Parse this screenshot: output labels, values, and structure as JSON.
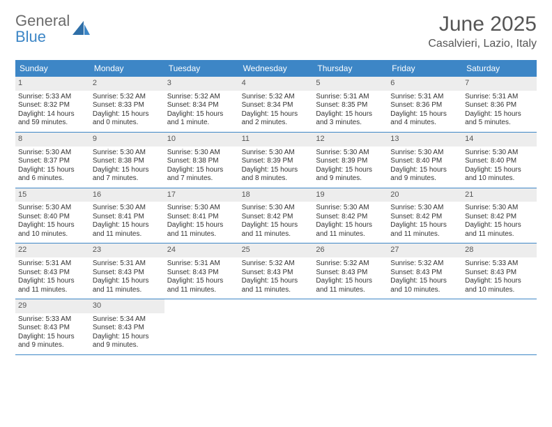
{
  "brand": {
    "first": "General",
    "second": "Blue"
  },
  "title": {
    "month": "June 2025",
    "location": "Casalvieri, Lazio, Italy"
  },
  "day_names": [
    "Sunday",
    "Monday",
    "Tuesday",
    "Wednesday",
    "Thursday",
    "Friday",
    "Saturday"
  ],
  "colors": {
    "header_bg": "#3d86c6",
    "header_text": "#ffffff",
    "num_bg": "#ededed",
    "row_border": "#3d86c6",
    "text": "#333333",
    "brand_gray": "#6b6b6b",
    "brand_blue": "#3d86c6"
  },
  "weeks": [
    [
      {
        "num": "1",
        "sunrise": "Sunrise: 5:33 AM",
        "sunset": "Sunset: 8:32 PM",
        "daylight1": "Daylight: 14 hours",
        "daylight2": "and 59 minutes."
      },
      {
        "num": "2",
        "sunrise": "Sunrise: 5:32 AM",
        "sunset": "Sunset: 8:33 PM",
        "daylight1": "Daylight: 15 hours",
        "daylight2": "and 0 minutes."
      },
      {
        "num": "3",
        "sunrise": "Sunrise: 5:32 AM",
        "sunset": "Sunset: 8:34 PM",
        "daylight1": "Daylight: 15 hours",
        "daylight2": "and 1 minute."
      },
      {
        "num": "4",
        "sunrise": "Sunrise: 5:32 AM",
        "sunset": "Sunset: 8:34 PM",
        "daylight1": "Daylight: 15 hours",
        "daylight2": "and 2 minutes."
      },
      {
        "num": "5",
        "sunrise": "Sunrise: 5:31 AM",
        "sunset": "Sunset: 8:35 PM",
        "daylight1": "Daylight: 15 hours",
        "daylight2": "and 3 minutes."
      },
      {
        "num": "6",
        "sunrise": "Sunrise: 5:31 AM",
        "sunset": "Sunset: 8:36 PM",
        "daylight1": "Daylight: 15 hours",
        "daylight2": "and 4 minutes."
      },
      {
        "num": "7",
        "sunrise": "Sunrise: 5:31 AM",
        "sunset": "Sunset: 8:36 PM",
        "daylight1": "Daylight: 15 hours",
        "daylight2": "and 5 minutes."
      }
    ],
    [
      {
        "num": "8",
        "sunrise": "Sunrise: 5:30 AM",
        "sunset": "Sunset: 8:37 PM",
        "daylight1": "Daylight: 15 hours",
        "daylight2": "and 6 minutes."
      },
      {
        "num": "9",
        "sunrise": "Sunrise: 5:30 AM",
        "sunset": "Sunset: 8:38 PM",
        "daylight1": "Daylight: 15 hours",
        "daylight2": "and 7 minutes."
      },
      {
        "num": "10",
        "sunrise": "Sunrise: 5:30 AM",
        "sunset": "Sunset: 8:38 PM",
        "daylight1": "Daylight: 15 hours",
        "daylight2": "and 7 minutes."
      },
      {
        "num": "11",
        "sunrise": "Sunrise: 5:30 AM",
        "sunset": "Sunset: 8:39 PM",
        "daylight1": "Daylight: 15 hours",
        "daylight2": "and 8 minutes."
      },
      {
        "num": "12",
        "sunrise": "Sunrise: 5:30 AM",
        "sunset": "Sunset: 8:39 PM",
        "daylight1": "Daylight: 15 hours",
        "daylight2": "and 9 minutes."
      },
      {
        "num": "13",
        "sunrise": "Sunrise: 5:30 AM",
        "sunset": "Sunset: 8:40 PM",
        "daylight1": "Daylight: 15 hours",
        "daylight2": "and 9 minutes."
      },
      {
        "num": "14",
        "sunrise": "Sunrise: 5:30 AM",
        "sunset": "Sunset: 8:40 PM",
        "daylight1": "Daylight: 15 hours",
        "daylight2": "and 10 minutes."
      }
    ],
    [
      {
        "num": "15",
        "sunrise": "Sunrise: 5:30 AM",
        "sunset": "Sunset: 8:40 PM",
        "daylight1": "Daylight: 15 hours",
        "daylight2": "and 10 minutes."
      },
      {
        "num": "16",
        "sunrise": "Sunrise: 5:30 AM",
        "sunset": "Sunset: 8:41 PM",
        "daylight1": "Daylight: 15 hours",
        "daylight2": "and 11 minutes."
      },
      {
        "num": "17",
        "sunrise": "Sunrise: 5:30 AM",
        "sunset": "Sunset: 8:41 PM",
        "daylight1": "Daylight: 15 hours",
        "daylight2": "and 11 minutes."
      },
      {
        "num": "18",
        "sunrise": "Sunrise: 5:30 AM",
        "sunset": "Sunset: 8:42 PM",
        "daylight1": "Daylight: 15 hours",
        "daylight2": "and 11 minutes."
      },
      {
        "num": "19",
        "sunrise": "Sunrise: 5:30 AM",
        "sunset": "Sunset: 8:42 PM",
        "daylight1": "Daylight: 15 hours",
        "daylight2": "and 11 minutes."
      },
      {
        "num": "20",
        "sunrise": "Sunrise: 5:30 AM",
        "sunset": "Sunset: 8:42 PM",
        "daylight1": "Daylight: 15 hours",
        "daylight2": "and 11 minutes."
      },
      {
        "num": "21",
        "sunrise": "Sunrise: 5:30 AM",
        "sunset": "Sunset: 8:42 PM",
        "daylight1": "Daylight: 15 hours",
        "daylight2": "and 11 minutes."
      }
    ],
    [
      {
        "num": "22",
        "sunrise": "Sunrise: 5:31 AM",
        "sunset": "Sunset: 8:43 PM",
        "daylight1": "Daylight: 15 hours",
        "daylight2": "and 11 minutes."
      },
      {
        "num": "23",
        "sunrise": "Sunrise: 5:31 AM",
        "sunset": "Sunset: 8:43 PM",
        "daylight1": "Daylight: 15 hours",
        "daylight2": "and 11 minutes."
      },
      {
        "num": "24",
        "sunrise": "Sunrise: 5:31 AM",
        "sunset": "Sunset: 8:43 PM",
        "daylight1": "Daylight: 15 hours",
        "daylight2": "and 11 minutes."
      },
      {
        "num": "25",
        "sunrise": "Sunrise: 5:32 AM",
        "sunset": "Sunset: 8:43 PM",
        "daylight1": "Daylight: 15 hours",
        "daylight2": "and 11 minutes."
      },
      {
        "num": "26",
        "sunrise": "Sunrise: 5:32 AM",
        "sunset": "Sunset: 8:43 PM",
        "daylight1": "Daylight: 15 hours",
        "daylight2": "and 11 minutes."
      },
      {
        "num": "27",
        "sunrise": "Sunrise: 5:32 AM",
        "sunset": "Sunset: 8:43 PM",
        "daylight1": "Daylight: 15 hours",
        "daylight2": "and 10 minutes."
      },
      {
        "num": "28",
        "sunrise": "Sunrise: 5:33 AM",
        "sunset": "Sunset: 8:43 PM",
        "daylight1": "Daylight: 15 hours",
        "daylight2": "and 10 minutes."
      }
    ],
    [
      {
        "num": "29",
        "sunrise": "Sunrise: 5:33 AM",
        "sunset": "Sunset: 8:43 PM",
        "daylight1": "Daylight: 15 hours",
        "daylight2": "and 9 minutes."
      },
      {
        "num": "30",
        "sunrise": "Sunrise: 5:34 AM",
        "sunset": "Sunset: 8:43 PM",
        "daylight1": "Daylight: 15 hours",
        "daylight2": "and 9 minutes."
      },
      null,
      null,
      null,
      null,
      null
    ]
  ]
}
